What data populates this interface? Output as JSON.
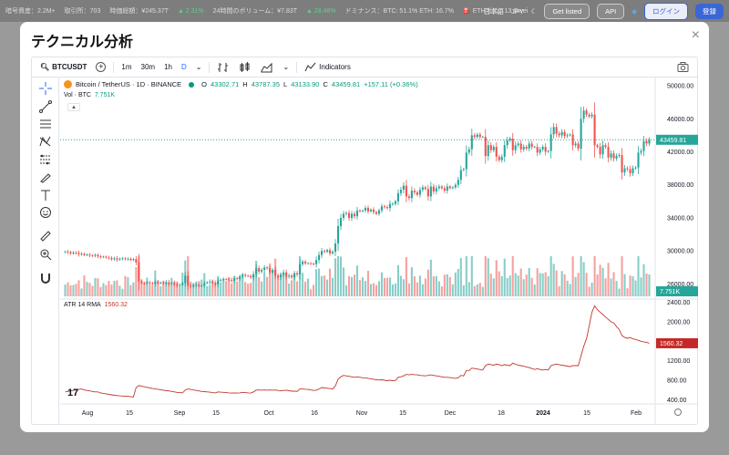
{
  "topbar": {
    "items": [
      "暗号資産：2.2M+",
      "取引所：703",
      "時価総額：¥245.37T",
      "▲ 2.31%",
      "24時間のボリューム：¥7.83T",
      "▲ 28.48%",
      "ドミナンス：BTC: 51.1% ETH: 16.7%",
      "⛽ ETHガス：13 Gwei"
    ],
    "language": "日本語",
    "currency": "JPY",
    "get_listed": "Get listed",
    "api": "API",
    "login": "ログイン",
    "register": "登録"
  },
  "modal": {
    "title": "テクニカル分析",
    "close": "×"
  },
  "toolbar": {
    "symbol": "BTCUSDT",
    "intervals": [
      "1m",
      "30m",
      "1h",
      "D"
    ],
    "active_interval": "D",
    "indicators_label": "Indicators"
  },
  "legend": {
    "title": "Bitcoin / TetherUS · 1D · BINANCE",
    "open_label": "O",
    "open": "43302.71",
    "high_label": "H",
    "high": "43787.35",
    "low_label": "L",
    "low": "43133.90",
    "close_label": "C",
    "close": "43459.81",
    "change": "+157.11 (+0.36%)",
    "vol_label": "Vol · BTC",
    "vol_value": "7.751K"
  },
  "atr": {
    "label": "ATR 14 RMA",
    "value": "1560.32"
  },
  "price_axis": {
    "ticks": [
      "50000.00",
      "46000.00",
      "42000.00",
      "38000.00",
      "34000.00",
      "30000.00",
      "26000.00"
    ],
    "last_price": "43459.81",
    "vol_badge": "7.751K"
  },
  "atr_axis": {
    "ticks": [
      "2400.00",
      "2000.00",
      "1600.00",
      "1200.00",
      "800.00",
      "400.00"
    ],
    "last_value": "1560.32"
  },
  "time_axis": [
    "Aug",
    "15",
    "Sep",
    "15",
    "Oct",
    "16",
    "Nov",
    "15",
    "Dec",
    "18",
    "2024",
    "15",
    "Feb"
  ],
  "colors": {
    "up": "#26a69a",
    "down": "#ef5350",
    "atr": "#c0392b",
    "accent": "#2962ff"
  },
  "chart_data": {
    "type": "candlestick",
    "title": "Bitcoin / TetherUS · 1D · BINANCE",
    "y_range": [
      24500,
      51000
    ],
    "atr_range": [
      350,
      2450
    ],
    "closes": [
      29900,
      29850,
      29700,
      29800,
      29750,
      29600,
      29650,
      29500,
      29550,
      29450,
      29400,
      29500,
      29350,
      29250,
      29300,
      29200,
      29150,
      29000,
      29100,
      28950,
      29050,
      29100,
      29000,
      29050,
      28900,
      29000,
      28600,
      26300,
      26100,
      26050,
      26200,
      26100,
      26000,
      26250,
      26100,
      26150,
      26050,
      26200,
      26000,
      26100,
      25950,
      25800,
      25900,
      26100,
      27000,
      25800,
      25700,
      25850,
      25900,
      25750,
      25800,
      26100,
      26200,
      26300,
      26150,
      25950,
      26400,
      26500,
      26600,
      26550,
      26500,
      26400,
      26700,
      26600,
      26900,
      27100,
      27000,
      26950,
      26800,
      27200,
      27900,
      27500,
      27700,
      28000,
      27900,
      27400,
      27700,
      27000,
      26800,
      27100,
      27400,
      26900,
      27000,
      26800,
      27300,
      27150,
      28400,
      28700,
      28500,
      28500,
      28450,
      28400,
      28900,
      29500,
      30000,
      29900,
      30100,
      29700,
      29900,
      30900,
      33000,
      34000,
      34500,
      34600,
      34000,
      34500,
      34200,
      34900,
      34800,
      34900,
      35200,
      34800,
      35000,
      34700,
      34500,
      34900,
      35400,
      35300,
      35200,
      35700,
      35700,
      36000,
      37000,
      37400,
      37900,
      36600,
      36400,
      37300,
      37100,
      36800,
      37400,
      37700,
      37500,
      36600,
      37800,
      37200,
      37600,
      37800,
      37600,
      37300,
      37800,
      37600,
      37700,
      38000,
      38600,
      39800,
      39900,
      41900,
      42300,
      44000,
      43800,
      44100,
      43800,
      43800,
      41500,
      42800,
      42200,
      42600,
      41400,
      41000,
      41400,
      42800,
      43400,
      43600,
      42200,
      42800,
      43000,
      42300,
      42600,
      42400,
      43000,
      42600,
      42600,
      41900,
      42300,
      42600,
      42000,
      42100,
      44100,
      45000,
      44200,
      44000,
      44400,
      43900,
      44000,
      44100,
      42800,
      43000,
      42400,
      46000,
      47000,
      46500,
      46300,
      46500,
      42800,
      42600,
      41700,
      42800,
      42600,
      41300,
      41800,
      41200,
      41500,
      41600,
      39500,
      40000,
      39900,
      39400,
      40000,
      40100,
      41900,
      42100,
      43300,
      43000,
      43459.81
    ],
    "atr_values": [
      560,
      570,
      580,
      590,
      600,
      610,
      620,
      600,
      590,
      580,
      570,
      560,
      560,
      540,
      530,
      520,
      510,
      500,
      490,
      485,
      480,
      475,
      470,
      470,
      460,
      455,
      650,
      690,
      680,
      665,
      655,
      640,
      630,
      620,
      615,
      605,
      595,
      585,
      580,
      570,
      560,
      550,
      545,
      540,
      600,
      620,
      610,
      600,
      590,
      580,
      570,
      565,
      560,
      555,
      545,
      540,
      560,
      555,
      550,
      545,
      540,
      535,
      540,
      535,
      540,
      550,
      545,
      540,
      535,
      560,
      600,
      600,
      595,
      600,
      595,
      600,
      595,
      600,
      590,
      585,
      590,
      595,
      585,
      575,
      575,
      570,
      620,
      620,
      615,
      610,
      600,
      590,
      595,
      620,
      650,
      640,
      635,
      630,
      620,
      680,
      820,
      870,
      900,
      890,
      880,
      870,
      860,
      870,
      860,
      850,
      850,
      840,
      830,
      820,
      810,
      805,
      810,
      800,
      790,
      800,
      790,
      795,
      860,
      870,
      890,
      920,
      910,
      920,
      915,
      910,
      900,
      895,
      890,
      900,
      910,
      900,
      890,
      880,
      870,
      860,
      860,
      855,
      845,
      840,
      850,
      900,
      890,
      1000,
      1000,
      1050,
      1040,
      1030,
      1020,
      1010,
      1100,
      1130,
      1120,
      1110,
      1130,
      1120,
      1100,
      1120,
      1110,
      1100,
      1150,
      1130,
      1110,
      1100,
      1090,
      1070,
      1060,
      1040,
      1020,
      1040,
      1020,
      1010,
      1020,
      1010,
      1100,
      1120,
      1130,
      1120,
      1110,
      1100,
      1090,
      1080,
      1100,
      1100,
      1100,
      1300,
      1500,
      1650,
      1920,
      2200,
      2330,
      2250,
      2200,
      2150,
      2100,
      2050,
      2000,
      1980,
      1900,
      1840,
      1720,
      1680,
      1660,
      1680,
      1650,
      1640,
      1620,
      1600,
      1590,
      1580,
      1560.32
    ]
  }
}
